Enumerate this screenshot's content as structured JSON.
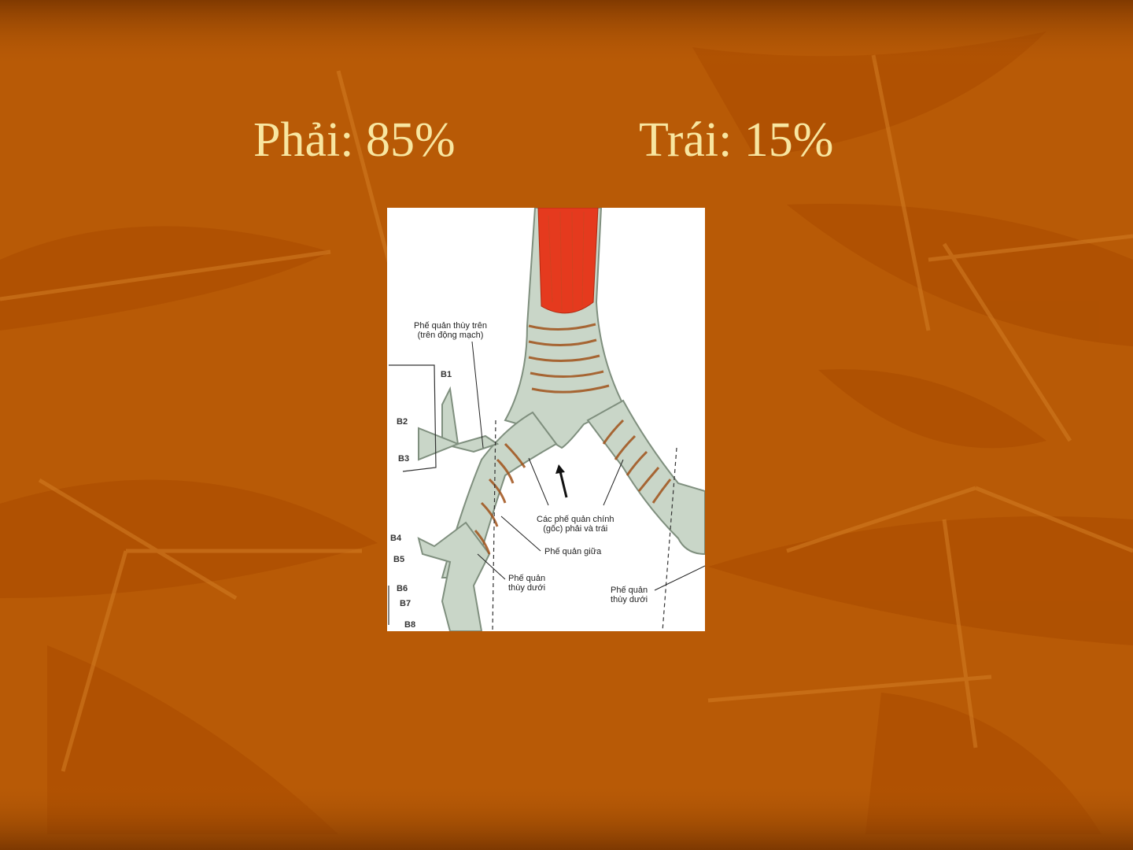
{
  "slide": {
    "title_right": "Phải: 85%",
    "title_left": "Trái: 15%"
  },
  "figure": {
    "labels": {
      "upper_lobe_bronchus_line1": "Phế quản thùy trên",
      "upper_lobe_bronchus_line2": "(trên động mạch)",
      "main_bronchi_line1": "Các phế quản chính",
      "main_bronchi_line2": "(gốc) phải và trái",
      "middle_bronchus": "Phế quản giữa",
      "lower_lobe_right_line1": "Phế quản",
      "lower_lobe_right_line2": "thùy dưới",
      "lower_lobe_left_line1": "Phế quản",
      "lower_lobe_left_line2": "thùy dưới"
    },
    "segments": {
      "b1": "B1",
      "b2": "B2",
      "b3": "B3",
      "b4": "B4",
      "b5": "B5",
      "b6": "B6",
      "b7": "B7",
      "b8": "B8"
    }
  },
  "colors": {
    "background": "#b85a06",
    "title": "#f8e6a0",
    "trachea_muscle": "#e53a1e",
    "cartilage": "#c9d6c8",
    "ring_edge": "#a0521a"
  }
}
